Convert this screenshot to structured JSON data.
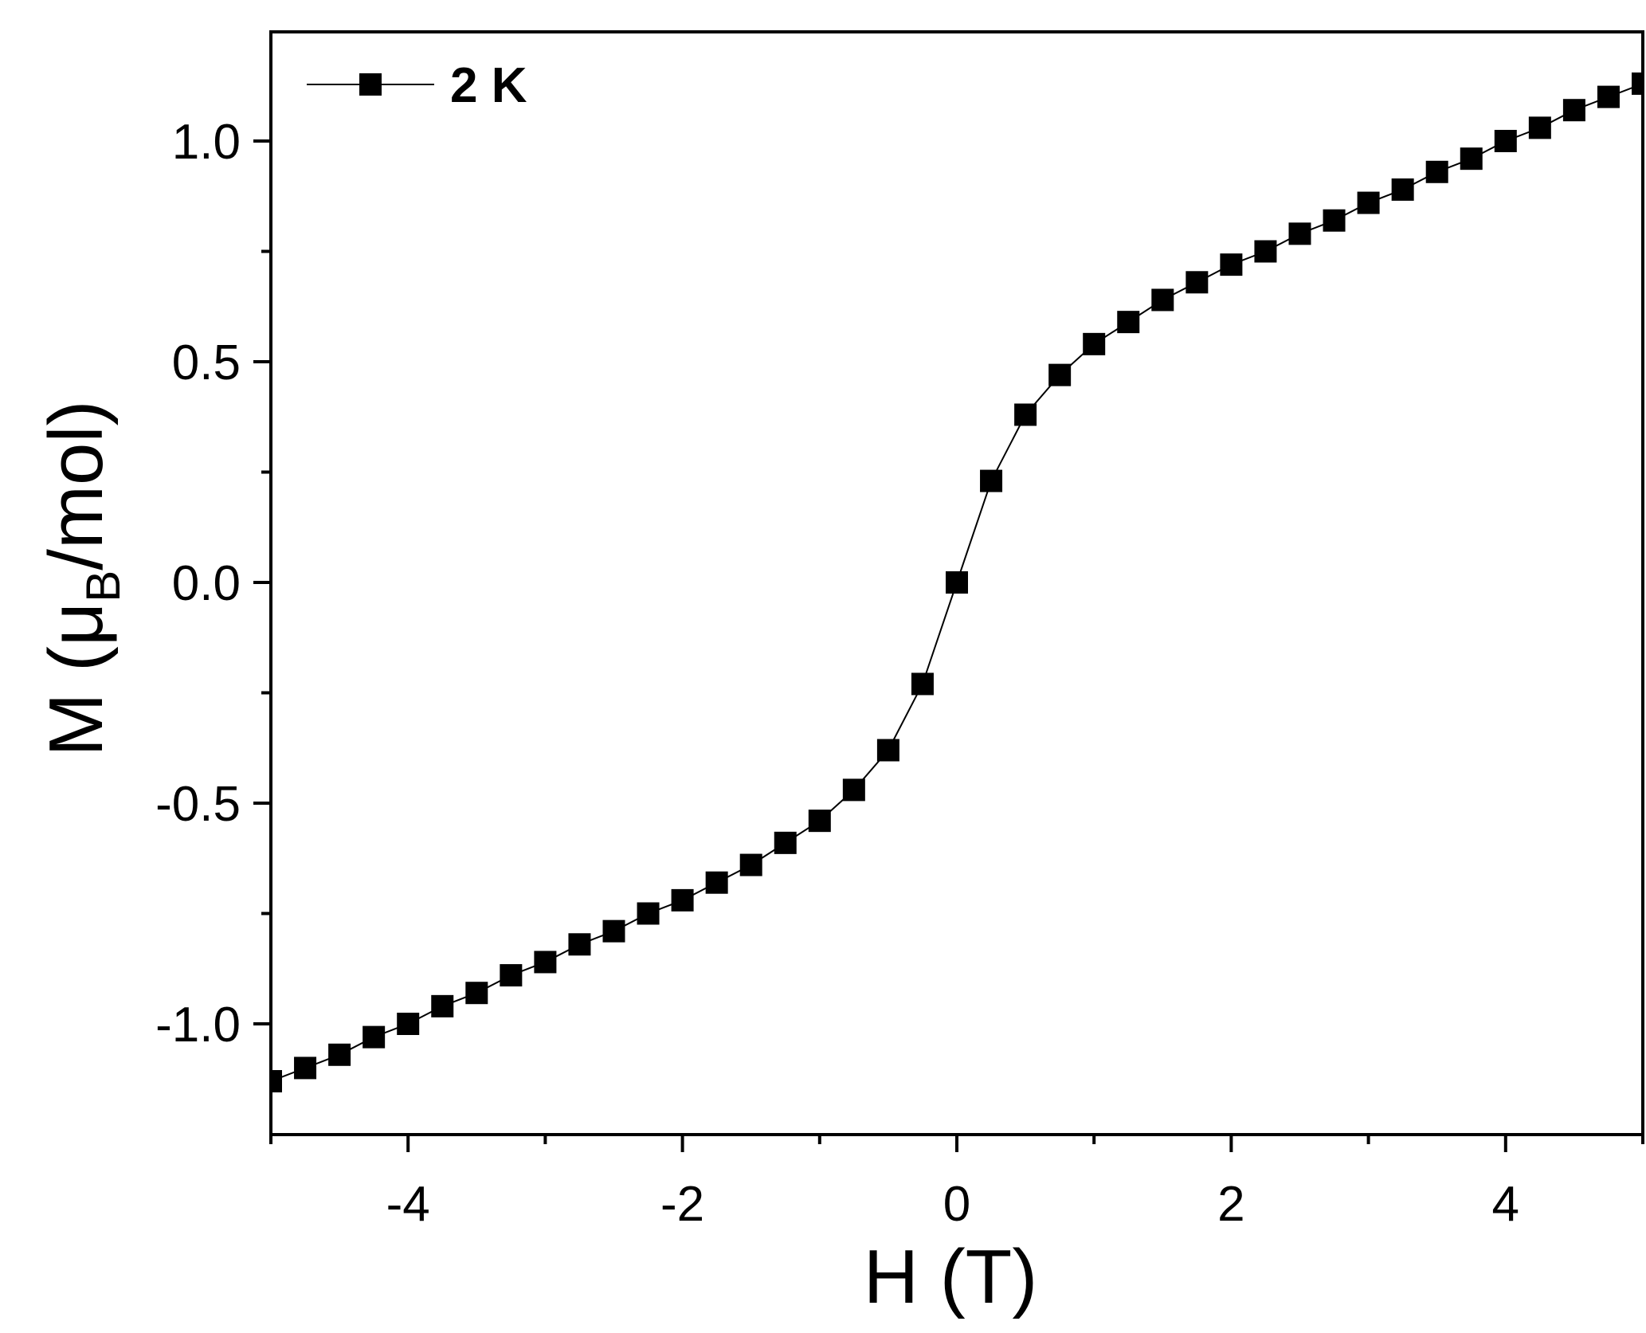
{
  "chart_data": {
    "type": "line",
    "xlabel": "H (T)",
    "ylabel": {
      "prefix": "M (",
      "mu": "μ",
      "sub": "B",
      "suffix": "/mol)"
    },
    "xlim": [
      -5,
      5
    ],
    "ylim": [
      -1.25,
      1.25
    ],
    "x_ticks": [
      -4,
      -2,
      0,
      2,
      4
    ],
    "x_tick_labels": [
      "-4",
      "-2",
      "0",
      "2",
      "4"
    ],
    "x_minor_ticks": [
      -5,
      -3,
      -1,
      1,
      3,
      5
    ],
    "y_ticks": [
      -1.0,
      -0.5,
      0.0,
      0.5,
      1.0
    ],
    "y_tick_labels": [
      "-1.0",
      "-0.5",
      "0.0",
      "0.5",
      "1.0"
    ],
    "y_minor_ticks": [
      -0.75,
      -0.25,
      0.25,
      0.75
    ],
    "grid": false,
    "legend_position": "top-left",
    "series": [
      {
        "name": "2 K",
        "marker": "square",
        "color": "#000000",
        "x": [
          -5.0,
          -4.75,
          -4.5,
          -4.25,
          -4.0,
          -3.75,
          -3.5,
          -3.25,
          -3.0,
          -2.75,
          -2.5,
          -2.25,
          -2.0,
          -1.75,
          -1.5,
          -1.25,
          -1.0,
          -0.75,
          -0.5,
          -0.25,
          0.0,
          0.25,
          0.5,
          0.75,
          1.0,
          1.25,
          1.5,
          1.75,
          2.0,
          2.25,
          2.5,
          2.75,
          3.0,
          3.25,
          3.5,
          3.75,
          4.0,
          4.25,
          4.5,
          4.75,
          5.0
        ],
        "y": [
          -1.13,
          -1.1,
          -1.07,
          -1.03,
          -1.0,
          -0.96,
          -0.93,
          -0.89,
          -0.86,
          -0.82,
          -0.79,
          -0.75,
          -0.72,
          -0.68,
          -0.64,
          -0.59,
          -0.54,
          -0.47,
          -0.38,
          -0.23,
          0.0,
          0.23,
          0.38,
          0.47,
          0.54,
          0.59,
          0.64,
          0.68,
          0.72,
          0.75,
          0.79,
          0.82,
          0.86,
          0.89,
          0.93,
          0.96,
          1.0,
          1.03,
          1.07,
          1.1,
          1.13
        ]
      }
    ]
  }
}
